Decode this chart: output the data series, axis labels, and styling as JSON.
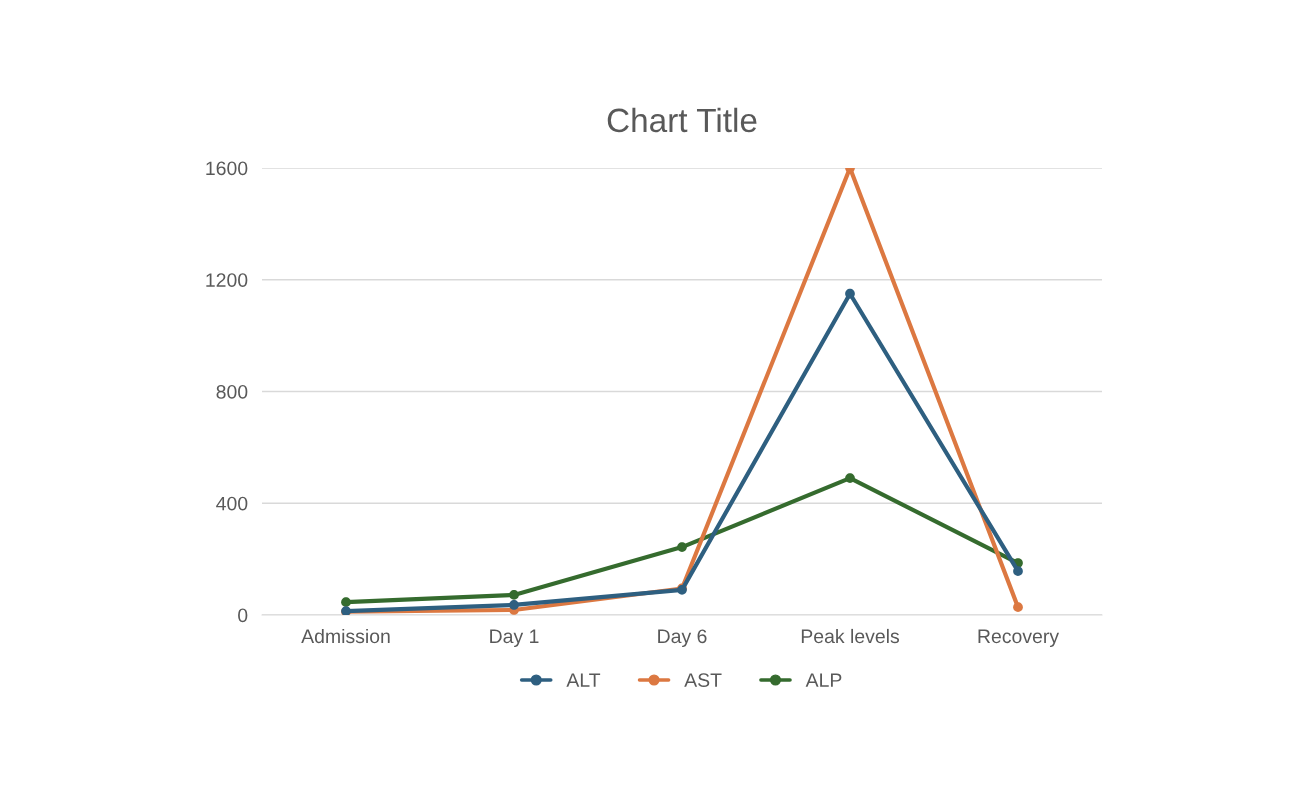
{
  "chart_data": {
    "type": "line",
    "title": "Chart Title",
    "categories": [
      "Admission",
      "Day 1",
      "Day 6",
      "Peak levels",
      "Recovery"
    ],
    "series": [
      {
        "name": "ALT",
        "color": "#2e5f80",
        "values": [
          14,
          36,
          90,
          1150,
          157
        ]
      },
      {
        "name": "AST",
        "color": "#dc7841",
        "values": [
          12,
          18,
          95,
          1600,
          28
        ]
      },
      {
        "name": "ALP",
        "color": "#356b2e",
        "values": [
          46,
          72,
          243,
          490,
          186
        ]
      }
    ],
    "ylim": [
      0,
      1600
    ],
    "yticks": [
      0,
      400,
      800,
      1200,
      1600
    ],
    "grid": "y",
    "legend": "bottom",
    "marker": "circle",
    "line_style": "solid"
  }
}
